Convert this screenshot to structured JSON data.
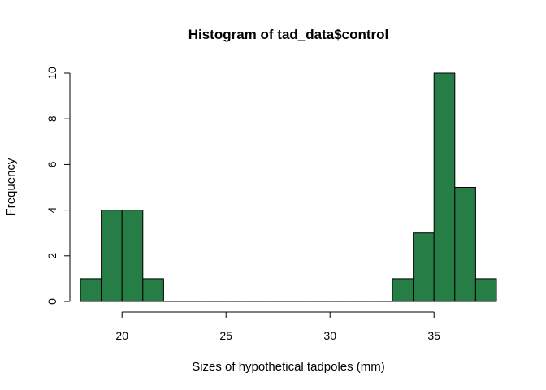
{
  "chart_data": {
    "type": "bar",
    "subtype": "histogram",
    "title": "Histogram of tad_data$control",
    "xlabel": "Sizes of hypothetical tadpoles (mm)",
    "ylabel": "Frequency",
    "bin_width": 1,
    "bin_starts": [
      18,
      19,
      20,
      21,
      22,
      23,
      24,
      25,
      26,
      27,
      28,
      29,
      30,
      31,
      32,
      33,
      34,
      35,
      36,
      37
    ],
    "counts": [
      1,
      4,
      4,
      1,
      0,
      0,
      0,
      0,
      0,
      0,
      0,
      0,
      0,
      0,
      0,
      1,
      3,
      10,
      5,
      1
    ],
    "xlim": [
      18,
      38
    ],
    "ylim": [
      0,
      10
    ],
    "x_ticks": [
      "20",
      "25",
      "30",
      "35"
    ],
    "y_ticks": [
      "0",
      "2",
      "4",
      "6",
      "8",
      "10"
    ],
    "bar_color": "#267d46",
    "grid": false
  }
}
